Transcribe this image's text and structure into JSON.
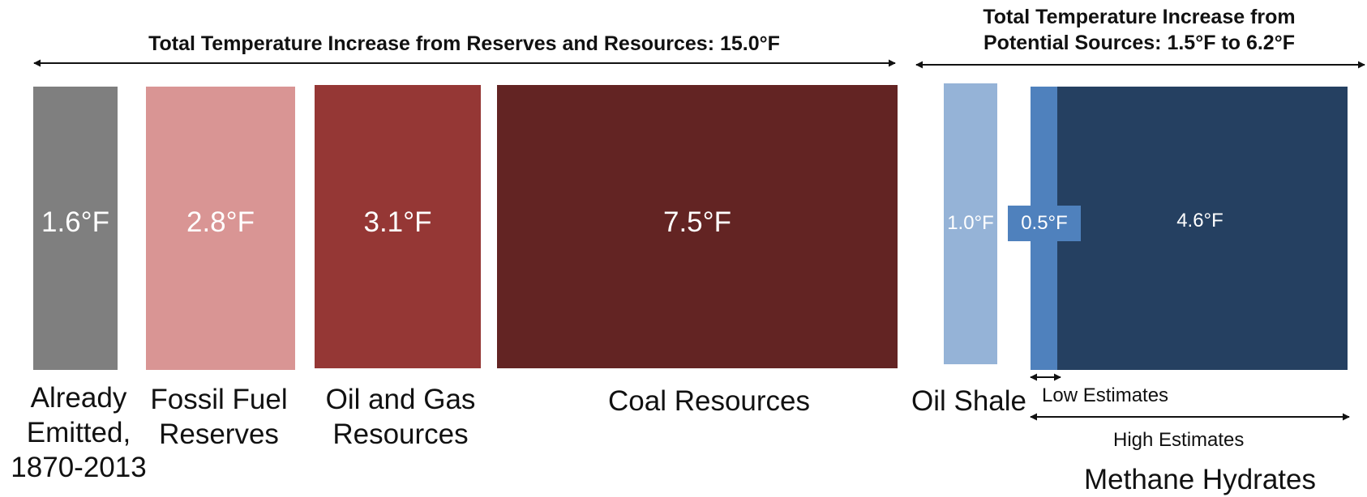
{
  "chart_data": {
    "type": "bar",
    "headings": {
      "reserves": "Total Temperature Increase from Reserves and Resources: 15.0°F",
      "potential_line1": "Total Temperature Increase from",
      "potential_line2": "Potential Sources: 1.5°F to 6.2°F"
    },
    "bars": [
      {
        "key": "already",
        "value": 1.6,
        "label": "1.6°F",
        "category": [
          "Already",
          "Emitted,",
          "1870-2013"
        ],
        "color": "#7f7f7f"
      },
      {
        "key": "reserves",
        "value": 2.8,
        "label": "2.8°F",
        "category": [
          "Fossil Fuel",
          "Reserves"
        ],
        "color": "#d99594"
      },
      {
        "key": "oilgas",
        "value": 3.1,
        "label": "3.1°F",
        "category": [
          "Oil and Gas",
          "Resources"
        ],
        "color": "#953735"
      },
      {
        "key": "coal",
        "value": 7.5,
        "label": "7.5°F",
        "category": [
          "Coal Resources"
        ],
        "color": "#632423"
      },
      {
        "key": "shale",
        "value": 1.0,
        "label": "1.0°F",
        "category": [
          "Oil Shale"
        ],
        "color": "#95b3d7"
      }
    ],
    "methane_hydrates": {
      "category": "Methane Hydrates",
      "low": {
        "value": 0.5,
        "label": "0.5°F",
        "color": "#4f81bd"
      },
      "high": {
        "value": 4.6,
        "label": "4.6°F",
        "color": "#254061"
      },
      "low_label": "Low Estimates",
      "high_label": "High Estimates"
    }
  }
}
